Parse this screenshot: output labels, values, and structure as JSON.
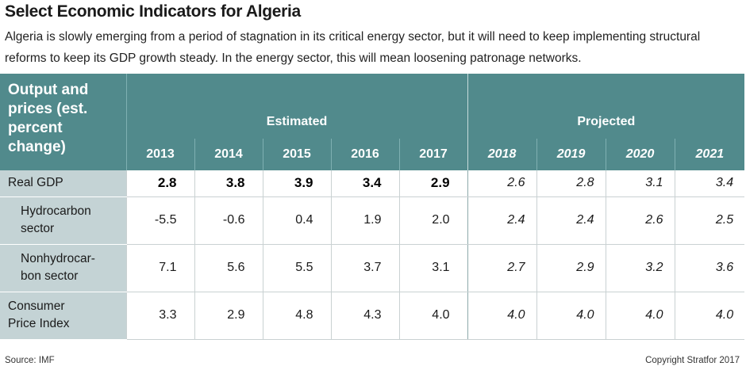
{
  "title": "Select Economic Indicators for Algeria",
  "subtitle": "Algeria is slowly emerging from a period of stagnation in its critical energy sector, but it will need to keep implementing structural reforms to keep its GDP growth steady. In the energy sector, this will mean loosening patronage networks.",
  "chart_data": {
    "type": "table",
    "header_label": "Output and prices (est. percent change)",
    "groups": [
      "Estimated",
      "Projected"
    ],
    "years": [
      "2013",
      "2014",
      "2015",
      "2016",
      "2017",
      "2018",
      "2019",
      "2020",
      "2021"
    ],
    "rows": [
      {
        "label": "Real GDP",
        "values": [
          "2.8",
          "3.8",
          "3.9",
          "3.4",
          "2.9",
          "2.6",
          "2.8",
          "3.1",
          "3.4"
        ]
      },
      {
        "label": "Hydrocarbon sector",
        "values": [
          "-5.5",
          "-0.6",
          "0.4",
          "1.9",
          "2.0",
          "2.4",
          "2.4",
          "2.6",
          "2.5"
        ]
      },
      {
        "label": "Nonhydrocar-bon sector",
        "values": [
          "7.1",
          "5.6",
          "5.5",
          "3.7",
          "3.1",
          "2.7",
          "2.9",
          "3.2",
          "3.6"
        ]
      },
      {
        "label": "Consumer Price Index",
        "values": [
          "3.3",
          "2.9",
          "4.8",
          "4.3",
          "4.0",
          "4.0",
          "4.0",
          "4.0",
          "4.0"
        ]
      }
    ]
  },
  "footer": {
    "source": "Source:  IMF",
    "copyright": "Copyright Stratfor 2017"
  },
  "colors": {
    "header_bg": "#518a8c",
    "label_bg": "#c4d3d5"
  }
}
